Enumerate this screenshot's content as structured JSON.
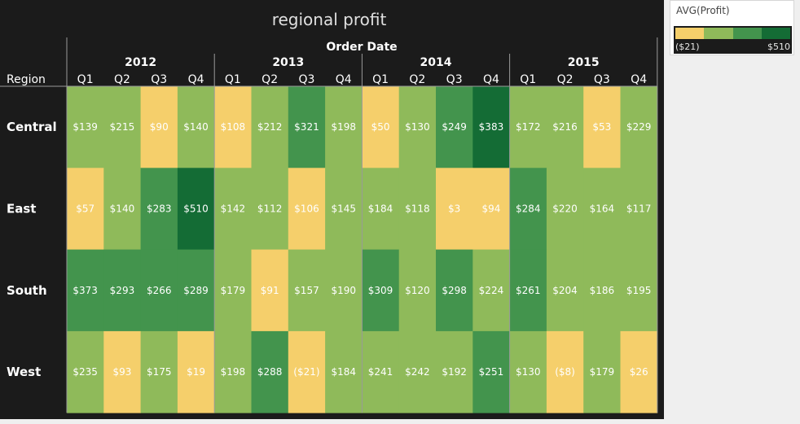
{
  "chart_data": {
    "type": "heatmap",
    "title": "regional profit",
    "column_header": "Order Date",
    "row_header": "Region",
    "years": [
      "2012",
      "2013",
      "2014",
      "2015"
    ],
    "quarters": [
      "Q1",
      "Q2",
      "Q3",
      "Q4"
    ],
    "rows": [
      {
        "region": "Central",
        "values": [
          139,
          215,
          90,
          140,
          108,
          212,
          321,
          198,
          50,
          130,
          249,
          383,
          172,
          216,
          53,
          229
        ],
        "labels": [
          "$139",
          "$215",
          "$90",
          "$140",
          "$108",
          "$212",
          "$321",
          "$198",
          "$50",
          "$130",
          "$249",
          "$383",
          "$172",
          "$216",
          "$53",
          "$229"
        ]
      },
      {
        "region": "East",
        "values": [
          57,
          140,
          283,
          510,
          142,
          112,
          106,
          145,
          184,
          118,
          3,
          94,
          284,
          220,
          164,
          117
        ],
        "labels": [
          "$57",
          "$140",
          "$283",
          "$510",
          "$142",
          "$112",
          "$106",
          "$145",
          "$184",
          "$118",
          "$3",
          "$94",
          "$284",
          "$220",
          "$164",
          "$117"
        ]
      },
      {
        "region": "South",
        "values": [
          373,
          293,
          266,
          289,
          179,
          91,
          157,
          190,
          309,
          120,
          298,
          224,
          261,
          204,
          186,
          195
        ],
        "labels": [
          "$373",
          "$293",
          "$266",
          "$289",
          "$179",
          "$91",
          "$157",
          "$190",
          "$309",
          "$120",
          "$298",
          "$224",
          "$261",
          "$204",
          "$186",
          "$195"
        ]
      },
      {
        "region": "West",
        "values": [
          235,
          93,
          175,
          19,
          198,
          288,
          -21,
          184,
          241,
          242,
          192,
          251,
          130,
          -8,
          179,
          26
        ],
        "labels": [
          "$235",
          "$93",
          "$175",
          "$19",
          "$198",
          "$288",
          "($21)",
          "$184",
          "$241",
          "$242",
          "$192",
          "$251",
          "$130",
          "($8)",
          "$179",
          "$26"
        ]
      }
    ],
    "color_scale": {
      "min": -21,
      "max": 510,
      "min_label": "($21)",
      "max_label": "$510",
      "steps": 4,
      "colors": [
        "#f5cf6b",
        "#8fba5a",
        "#43944d",
        "#146c35"
      ]
    },
    "legend": {
      "title": "AVG(Profit)",
      "placement": "top-right"
    }
  },
  "colors": {
    "background": "#1b1b1b",
    "text_light": "#ffffff",
    "grid_line": "#9a9a9a"
  }
}
